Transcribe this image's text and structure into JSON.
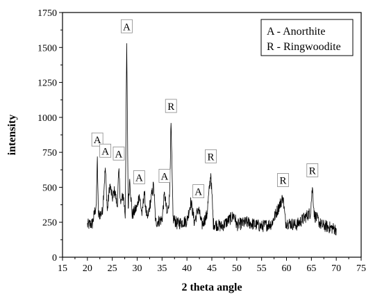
{
  "chart_data": {
    "type": "line",
    "xlabel": "2 theta angle",
    "ylabel": "intensity",
    "xlim": [
      15,
      75
    ],
    "ylim": [
      0,
      1750
    ],
    "x_ticks": [
      15,
      20,
      25,
      30,
      35,
      40,
      45,
      50,
      55,
      60,
      65,
      70,
      75
    ],
    "y_ticks": [
      0,
      250,
      500,
      750,
      1000,
      1250,
      1500,
      1750
    ],
    "legend": {
      "placement": "top-right",
      "entries": [
        "A - Anorthite",
        "R - Ringwoodite"
      ]
    },
    "baseline": 220,
    "series": [
      {
        "values": [
          [
            20.0,
            230
          ],
          [
            21.0,
            240
          ],
          [
            21.8,
            380
          ],
          [
            22.0,
            720
          ],
          [
            22.2,
            300
          ],
          [
            23.0,
            320
          ],
          [
            23.6,
            640
          ],
          [
            24.0,
            330
          ],
          [
            24.5,
            520
          ],
          [
            25.0,
            420
          ],
          [
            25.5,
            480
          ],
          [
            26.0,
            360
          ],
          [
            26.3,
            620
          ],
          [
            26.7,
            380
          ],
          [
            27.2,
            450
          ],
          [
            27.6,
            300
          ],
          [
            27.9,
            1530
          ],
          [
            28.2,
            350
          ],
          [
            28.5,
            560
          ],
          [
            29.0,
            300
          ],
          [
            30.0,
            360
          ],
          [
            30.4,
            450
          ],
          [
            31.0,
            300
          ],
          [
            31.4,
            470
          ],
          [
            32.0,
            260
          ],
          [
            33.3,
            520
          ],
          [
            33.7,
            250
          ],
          [
            35.0,
            270
          ],
          [
            35.5,
            460
          ],
          [
            36.0,
            300
          ],
          [
            36.5,
            430
          ],
          [
            36.8,
            960
          ],
          [
            37.2,
            280
          ],
          [
            38.0,
            240
          ],
          [
            40.0,
            260
          ],
          [
            40.8,
            400
          ],
          [
            41.5,
            250
          ],
          [
            42.3,
            350
          ],
          [
            43.0,
            230
          ],
          [
            44.0,
            300
          ],
          [
            44.8,
            600
          ],
          [
            45.3,
            240
          ],
          [
            47.0,
            220
          ],
          [
            49.5,
            300
          ],
          [
            50.0,
            230
          ],
          [
            52.0,
            250
          ],
          [
            55.0,
            220
          ],
          [
            57.0,
            240
          ],
          [
            59.3,
            430
          ],
          [
            59.8,
            250
          ],
          [
            62.0,
            230
          ],
          [
            64.8,
            320
          ],
          [
            65.2,
            500
          ],
          [
            65.6,
            300
          ],
          [
            67.0,
            230
          ],
          [
            70.0,
            200
          ]
        ]
      }
    ],
    "annotations": [
      {
        "text": "A",
        "x": 22.0,
        "y": 720
      },
      {
        "text": "A",
        "x": 23.6,
        "y": 640
      },
      {
        "text": "A",
        "x": 26.3,
        "y": 620
      },
      {
        "text": "A",
        "x": 27.9,
        "y": 1530
      },
      {
        "text": "A",
        "x": 30.4,
        "y": 450
      },
      {
        "text": "A",
        "x": 35.5,
        "y": 460
      },
      {
        "text": "R",
        "x": 36.8,
        "y": 960
      },
      {
        "text": "A",
        "x": 42.3,
        "y": 350
      },
      {
        "text": "R",
        "x": 44.8,
        "y": 600
      },
      {
        "text": "R",
        "x": 59.3,
        "y": 430
      },
      {
        "text": "R",
        "x": 65.2,
        "y": 500
      }
    ]
  }
}
